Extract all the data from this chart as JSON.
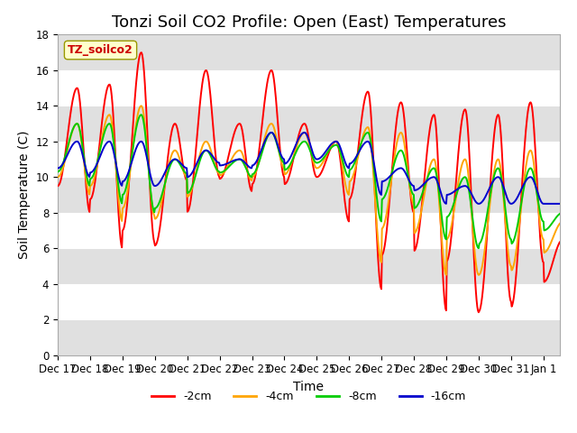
{
  "title": "Tonzi Soil CO2 Profile: Open (East) Temperatures",
  "ylabel": "Soil Temperature (C)",
  "xlabel": "Time",
  "station_label": "TZ_soilco2",
  "ylim": [
    0,
    18
  ],
  "yticks": [
    0,
    2,
    4,
    6,
    8,
    10,
    12,
    14,
    16,
    18
  ],
  "xtick_labels": [
    "Dec 17",
    "Dec 18",
    "Dec 19",
    "Dec 20",
    "Dec 21",
    "Dec 22",
    "Dec 23",
    "Dec 24",
    "Dec 25",
    "Dec 26",
    "Dec 27",
    "Dec 28",
    "Dec 29",
    "Dec 30",
    "Dec 31",
    "Jan 1"
  ],
  "colors": {
    "-2cm": "#ff0000",
    "-4cm": "#ffa500",
    "-8cm": "#00cc00",
    "-16cm": "#0000cc"
  },
  "legend_labels": [
    "-2cm",
    "-4cm",
    "-8cm",
    "-16cm"
  ],
  "background_color": "#ffffff",
  "plot_bg_color": "#ffffff",
  "band_color": "#e0e0e0",
  "title_fontsize": 13,
  "axis_fontsize": 10,
  "tick_fontsize": 8.5,
  "line_width": 1.4,
  "total_days": 15.5,
  "pts_per_day": 48
}
